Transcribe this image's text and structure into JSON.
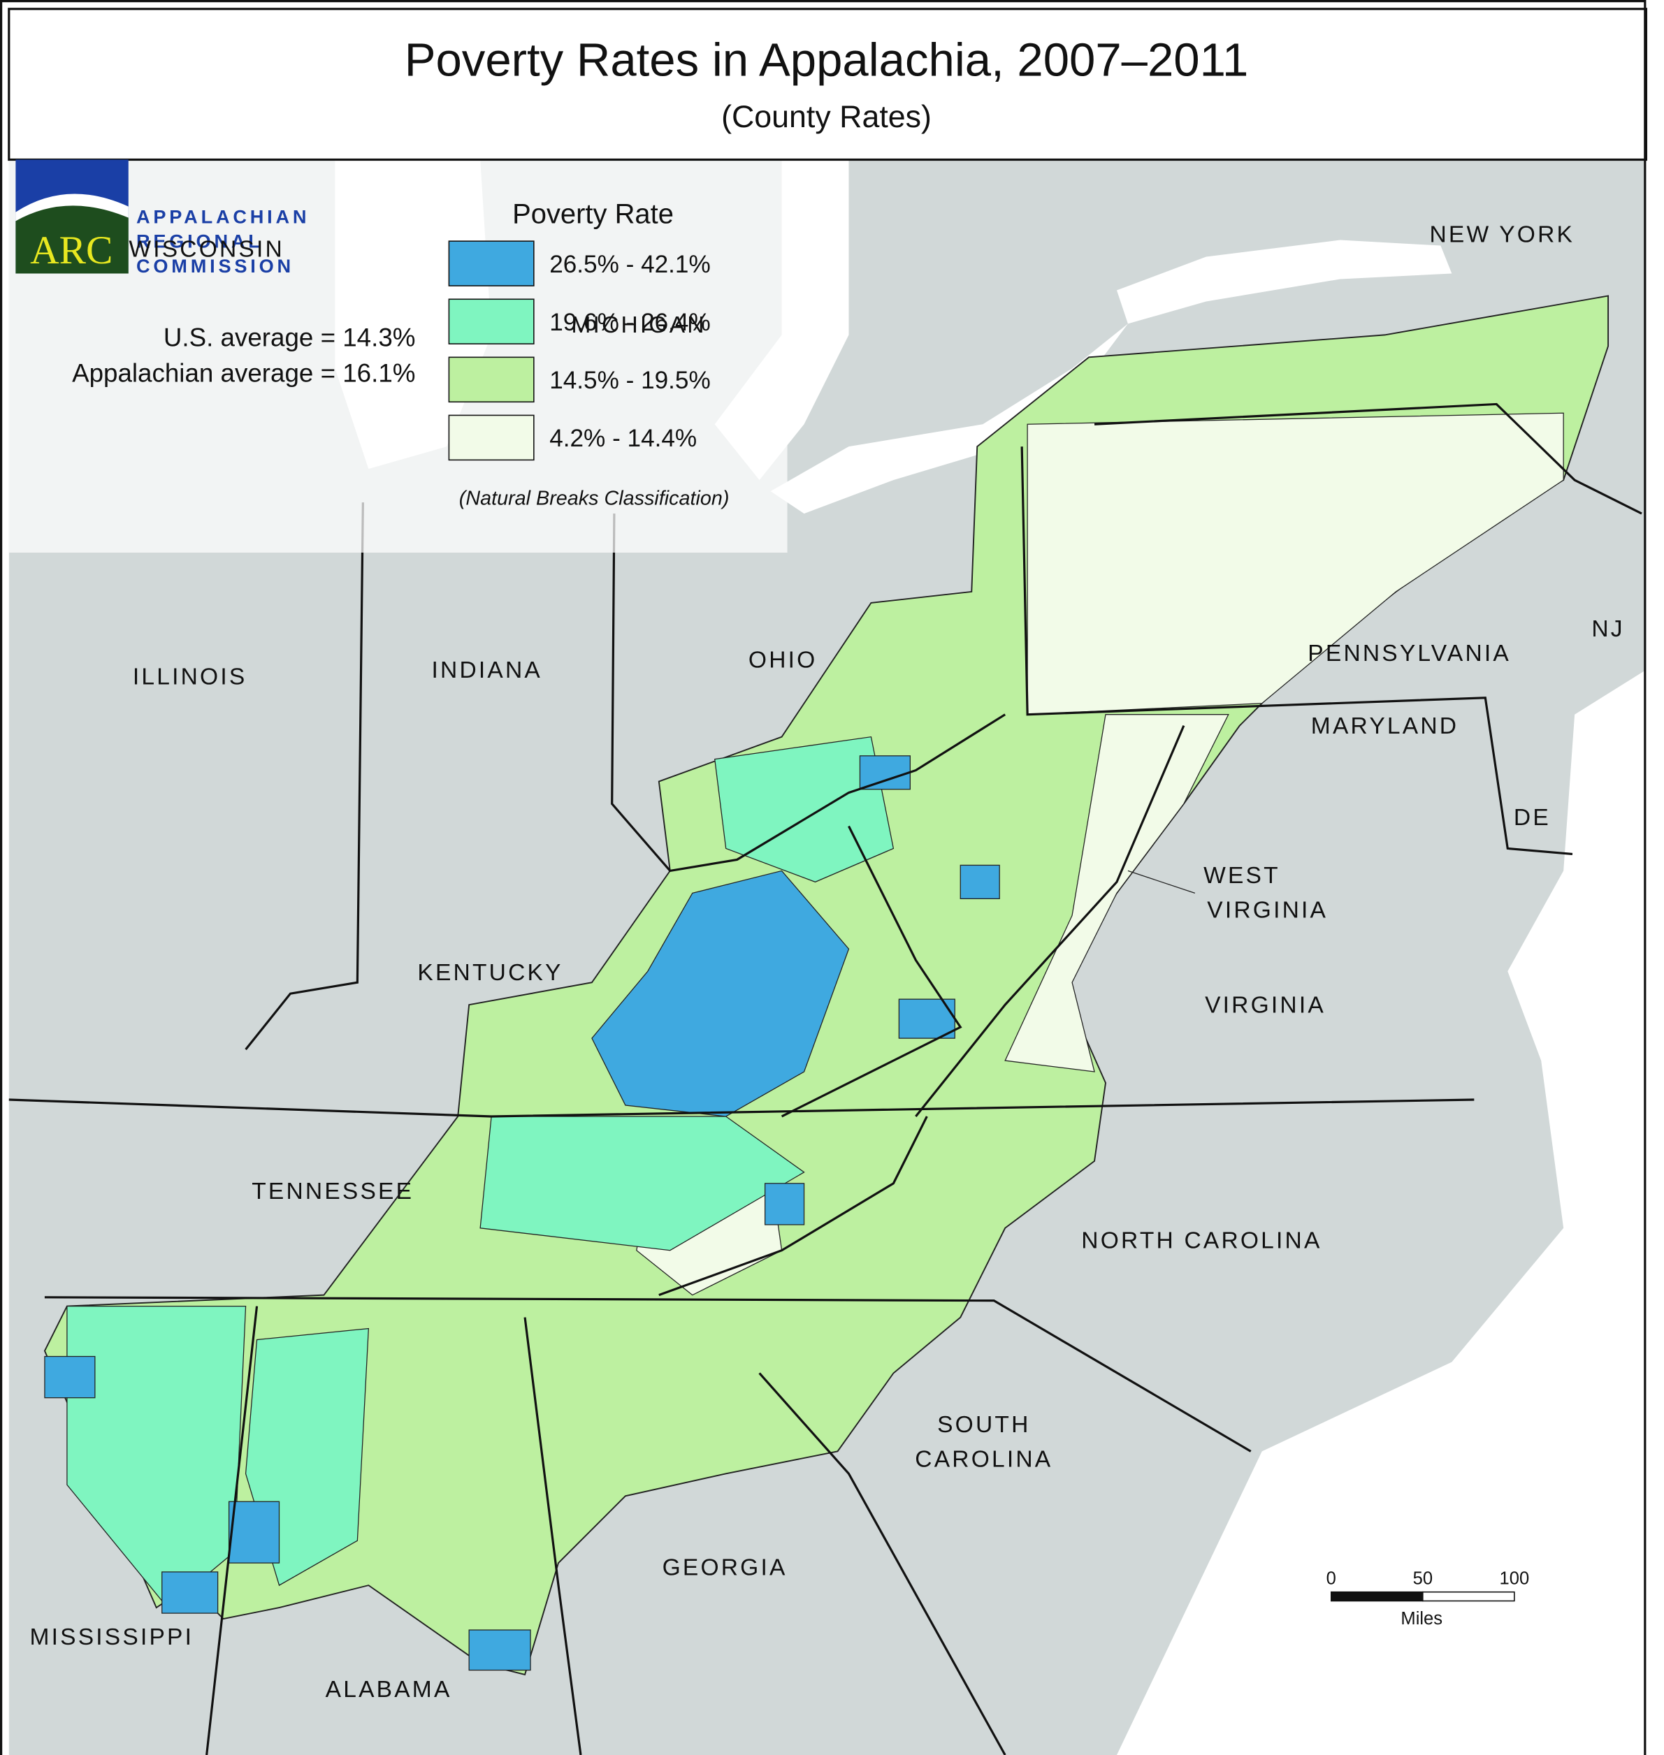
{
  "header": {
    "title": "Poverty Rates in Appalachia, 2007–2011",
    "subtitle": "(County Rates)"
  },
  "logo": {
    "mark": "ARC",
    "lines": [
      "APPALACHIAN",
      "REGIONAL",
      "COMMISSION"
    ]
  },
  "averages": [
    "U.S. average = 14.3%",
    "Appalachian average = 16.1%"
  ],
  "legend": {
    "title": "Poverty Rate",
    "items": [
      {
        "label": "26.5% - 42.1%",
        "color": "#3fa9e0"
      },
      {
        "label": "19.6% - 26.4%",
        "color": "#7ff5c0"
      },
      {
        "label": "14.5% - 19.5%",
        "color": "#bdf0a0"
      },
      {
        "label": "4.2% - 14.4%",
        "color": "#f2fbe8"
      }
    ],
    "note": "(Natural Breaks Classification)"
  },
  "state_labels": [
    {
      "lines": [
        "NEW YORK"
      ]
    },
    {
      "lines": [
        "PENNSYLVANIA"
      ]
    },
    {
      "lines": [
        "NJ"
      ]
    },
    {
      "lines": [
        "MARYLAND"
      ]
    },
    {
      "lines": [
        "DE"
      ]
    },
    {
      "lines": [
        "WEST",
        "VIRGINIA"
      ]
    },
    {
      "lines": [
        "OHIO"
      ]
    },
    {
      "lines": [
        "INDIANA"
      ]
    },
    {
      "lines": [
        "ILLINOIS"
      ]
    },
    {
      "lines": [
        "KENTUCKY"
      ]
    },
    {
      "lines": [
        "VIRGINIA"
      ]
    },
    {
      "lines": [
        "TENNESSEE"
      ]
    },
    {
      "lines": [
        "NORTH CAROLINA"
      ]
    },
    {
      "lines": [
        "SOUTH",
        "CAROLINA"
      ]
    },
    {
      "lines": [
        "GEORGIA"
      ]
    },
    {
      "lines": [
        "ALABAMA"
      ]
    },
    {
      "lines": [
        "MISSISSIPPI"
      ]
    },
    {
      "lines": [
        "WISCONSIN"
      ]
    },
    {
      "lines": [
        "MICHIGAN"
      ]
    }
  ],
  "scale_bar": {
    "ticks": [
      "0",
      "50",
      "100"
    ],
    "unit": "Miles"
  }
}
